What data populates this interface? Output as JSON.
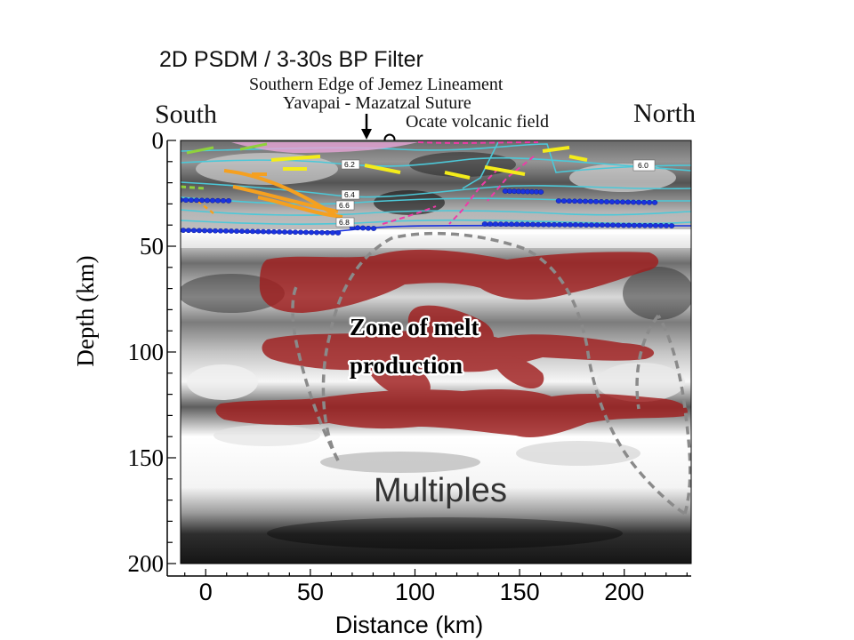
{
  "title": "2D PSDM / 3-30s BP Filter",
  "annotations": {
    "jemez": "Southern Edge of Jemez Lineament",
    "suture": "Yavapai - Mazatzal Suture",
    "ocate": "Ocate volcanic field",
    "south": "South",
    "north": "North",
    "melt_line1": "Zone of melt",
    "melt_line2": "production",
    "multiples": "Multiples"
  },
  "velocity_labels": [
    "6.2",
    "6.4",
    "6.6",
    "6.8",
    "6.0"
  ],
  "axes": {
    "xlabel": "Distance (km)",
    "ylabel": "Depth (km)",
    "xticks": [
      0,
      50,
      100,
      150,
      200
    ],
    "yticks": [
      0,
      50,
      100,
      150,
      200
    ],
    "xlim": [
      -12,
      232
    ],
    "ylim": [
      0,
      200
    ]
  },
  "colors": {
    "melt": "#a01e1e",
    "moho_points": "#1a33e0",
    "velocity_contours": "#4cc8d8",
    "dashed_outline": "#8a8a8a",
    "orange_layers": "#f5a020",
    "yellow_layers": "#f4ec1a",
    "magenta_layers": "#ef3aa8",
    "green_layers": "#8fd13c"
  }
}
